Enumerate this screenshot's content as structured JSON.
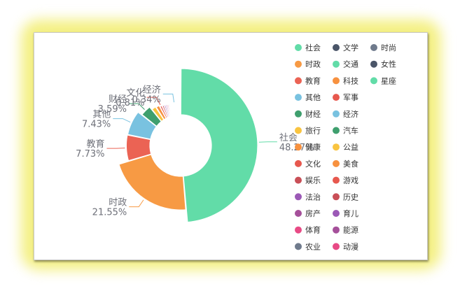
{
  "chart_data": {
    "type": "pie",
    "variant": "rose-donut",
    "title": "",
    "legend_placement": "right",
    "slices": [
      {
        "name": "社会",
        "value": 48.27,
        "label": "社会\n48.27%",
        "color": "#62dca8"
      },
      {
        "name": "时政",
        "value": 21.55,
        "label": "时政\n21.55%",
        "color": "#f79a44"
      },
      {
        "name": "教育",
        "value": 7.73,
        "label": "教育\n7.73%",
        "color": "#eb6354"
      },
      {
        "name": "其他",
        "value": 7.43,
        "label": "其他\n7.43%",
        "color": "#79c2e0"
      },
      {
        "name": "财经",
        "value": 3.59,
        "label": "财经\n3.59%",
        "color": "#3f9f6e"
      },
      {
        "name": "旅行",
        "value": 1.6,
        "label": "",
        "color": "#f9c440"
      },
      {
        "name": "健康",
        "value": 1.3,
        "label": "",
        "color": "#f7913f"
      },
      {
        "name": "文化",
        "value": 0.81,
        "label": "文化\n0.81%",
        "color": "#e7584e"
      },
      {
        "name": "娱乐",
        "value": 0.7,
        "label": "",
        "color": "#c94f57"
      },
      {
        "name": "法治",
        "value": 0.6,
        "label": "",
        "color": "#9b59b6"
      },
      {
        "name": "房产",
        "value": 0.55,
        "label": "",
        "color": "#a5509a"
      },
      {
        "name": "体育",
        "value": 0.5,
        "label": "",
        "color": "#e84a85"
      },
      {
        "name": "农业",
        "value": 0.45,
        "label": "",
        "color": "#6f7a8c"
      },
      {
        "name": "文学",
        "value": 0.42,
        "label": "",
        "color": "#4a5568"
      },
      {
        "name": "交通",
        "value": 0.4,
        "label": "",
        "color": "#62dca8"
      },
      {
        "name": "科技",
        "value": 0.38,
        "label": "",
        "color": "#f7913f"
      },
      {
        "name": "军事",
        "value": 0.36,
        "label": "",
        "color": "#e7584e"
      },
      {
        "name": "经济",
        "value": 0.34,
        "label": "经济\n0.34%",
        "color": "#79c2e0"
      },
      {
        "name": "汽车",
        "value": 0.3,
        "label": "",
        "color": "#3f9f6e"
      },
      {
        "name": "公益",
        "value": 0.28,
        "label": "",
        "color": "#f9c440"
      },
      {
        "name": "美食",
        "value": 0.26,
        "label": "",
        "color": "#f7913f"
      },
      {
        "name": "游戏",
        "value": 0.24,
        "label": "",
        "color": "#e7584e"
      },
      {
        "name": "历史",
        "value": 0.22,
        "label": "",
        "color": "#c94f57"
      },
      {
        "name": "育儿",
        "value": 0.2,
        "label": "",
        "color": "#9b59b6"
      },
      {
        "name": "能源",
        "value": 0.18,
        "label": "",
        "color": "#a5509a"
      },
      {
        "name": "动漫",
        "value": 0.16,
        "label": "",
        "color": "#e84a85"
      },
      {
        "name": "时尚",
        "value": 0.15,
        "label": "",
        "color": "#6f7a8c"
      },
      {
        "name": "女性",
        "value": 0.13,
        "label": "",
        "color": "#4a5568"
      },
      {
        "name": "星座",
        "value": 0.1,
        "label": "",
        "color": "#62dca8"
      }
    ],
    "legend_order": [
      "社会",
      "文学",
      "时尚",
      "时政",
      "交通",
      "女性",
      "教育",
      "科技",
      "星座",
      "其他",
      "军事",
      "财经",
      "经济",
      "旅行",
      "汽车",
      "健康",
      "公益",
      "文化",
      "美食",
      "娱乐",
      "游戏",
      "法治",
      "历史",
      "房产",
      "育儿",
      "体育",
      "能源",
      "农业",
      "动漫"
    ]
  }
}
